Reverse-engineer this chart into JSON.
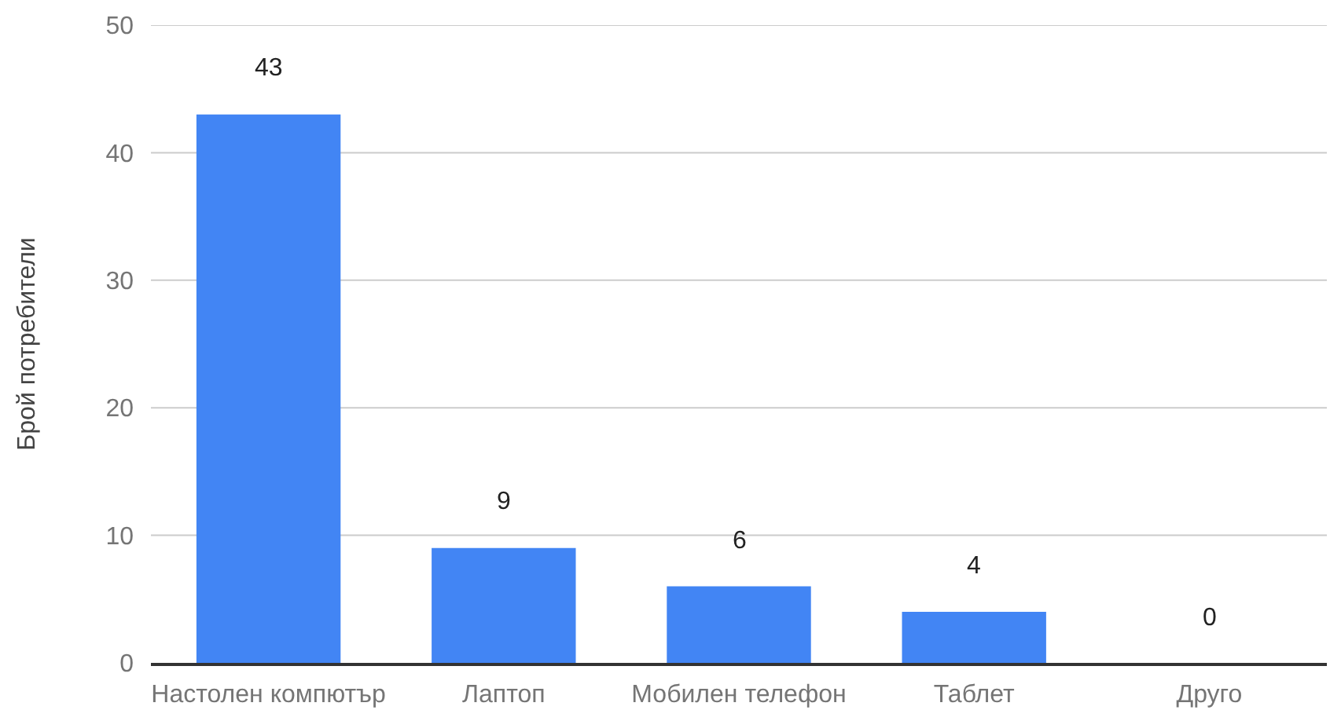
{
  "chart_data": {
    "type": "bar",
    "ylabel": "Брой потребители",
    "categories": [
      "Настолен компютър",
      "Лаптоп",
      "Мобилен телефон",
      "Таблет",
      "Друго"
    ],
    "values": [
      43,
      9,
      6,
      4,
      0
    ],
    "color": "#4285f4",
    "ylim": [
      0,
      50
    ],
    "yticks": [
      0,
      10,
      20,
      30,
      40,
      50
    ],
    "grid": "y",
    "data_labels": true
  }
}
